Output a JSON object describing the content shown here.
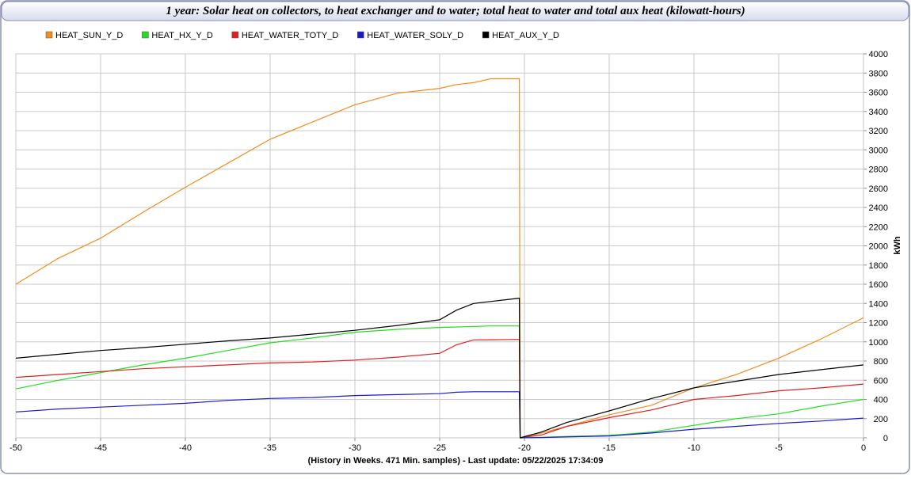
{
  "chart_data": {
    "type": "line",
    "title": "1 year: Solar heat on collectors, to heat exchanger and to water; total heat to water and total aux heat (kilowatt-hours)",
    "x_label": "(History in Weeks. 471 Min. samples) - Last update: 05/22/2025 17:34:09",
    "y_label": "kWh",
    "x": [
      -50,
      -47.5,
      -45,
      -42.5,
      -40,
      -37.5,
      -35,
      -32.5,
      -30,
      -27.5,
      -25,
      -24,
      -23,
      -22,
      -20.3,
      -20.25,
      -19,
      -17.5,
      -15,
      -12.5,
      -10,
      -7.5,
      -5,
      -2.5,
      0
    ],
    "series": [
      {
        "name": "HEAT_SUN_Y_D",
        "color": "#f28c1f",
        "values": [
          1600,
          1870,
          2080,
          2350,
          2610,
          2860,
          3110,
          3290,
          3470,
          3590,
          3640,
          3680,
          3700,
          3740,
          3740,
          0,
          50,
          120,
          240,
          340,
          520,
          660,
          830,
          1030,
          1250
        ]
      },
      {
        "name": "HEAT_HX_Y_D",
        "color": "#22dd22",
        "values": [
          510,
          600,
          680,
          760,
          830,
          910,
          990,
          1040,
          1100,
          1130,
          1150,
          1155,
          1160,
          1165,
          1165,
          0,
          5,
          15,
          25,
          60,
          130,
          200,
          250,
          330,
          400
        ]
      },
      {
        "name": "HEAT_WATER_TOTY_D",
        "color": "#e02020",
        "values": [
          630,
          660,
          690,
          720,
          740,
          760,
          780,
          790,
          810,
          840,
          880,
          970,
          1020,
          1022,
          1025,
          0,
          30,
          120,
          210,
          290,
          400,
          440,
          490,
          520,
          560
        ]
      },
      {
        "name": "HEAT_WATER_SOLY_D",
        "color": "#1a1acc",
        "values": [
          270,
          300,
          320,
          340,
          360,
          390,
          410,
          420,
          440,
          450,
          460,
          475,
          480,
          480,
          480,
          0,
          3,
          10,
          20,
          50,
          90,
          120,
          150,
          175,
          205
        ]
      },
      {
        "name": "HEAT_AUX_Y_D",
        "color": "#000000",
        "values": [
          830,
          870,
          910,
          940,
          975,
          1010,
          1040,
          1080,
          1120,
          1170,
          1230,
          1330,
          1400,
          1420,
          1455,
          0,
          60,
          160,
          280,
          410,
          520,
          590,
          660,
          710,
          760
        ]
      }
    ],
    "xlim": [
      -50,
      0
    ],
    "xticks": [
      -50,
      -45,
      -40,
      -35,
      -30,
      -25,
      -20,
      -15,
      -10,
      -5,
      0
    ],
    "ylim": [
      0,
      4000
    ],
    "yticks": [
      0,
      200,
      400,
      600,
      800,
      1000,
      1200,
      1400,
      1600,
      1800,
      2000,
      2200,
      2400,
      2600,
      2800,
      3000,
      3200,
      3400,
      3600,
      3800,
      4000
    ],
    "grid": true
  }
}
